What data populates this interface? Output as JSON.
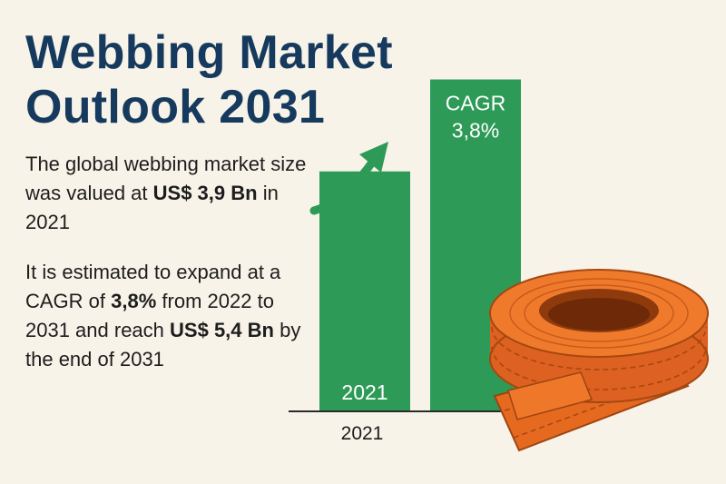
{
  "title_lines": [
    "Webbing Market",
    "Outlook 2031"
  ],
  "paragraph1": {
    "t1": "The global webbing market size was valued at ",
    "b1": "US$ 3,9 Bn",
    "t2": " in 2021"
  },
  "paragraph2": {
    "t1": "It is estimated to expand at a CAGR of ",
    "b1": "3,8%",
    "t2": " from 2022 to 2031 and reach ",
    "b2": "US$ 5,4 Bn",
    "t3": " by the end of 2031"
  },
  "chart_data": {
    "type": "bar",
    "categories": [
      "2021",
      ""
    ],
    "values": [
      3.9,
      5.4
    ],
    "bar_labels": [
      "2021",
      "CAGR\n3,8%"
    ],
    "axis_label_under_bar": "2021",
    "units": "US$ Bn",
    "ylim": [
      0,
      6.0
    ],
    "bar_color": "#2e9a57",
    "arrow_color": "#2e9a57",
    "grid": false,
    "legend": "none"
  },
  "colors": {
    "title": "#163a5e",
    "text": "#1d1d1d",
    "background": "#f8f3e8",
    "webbing_orange": "#e86a22"
  },
  "illustration": "orange-webbing-roll-icon"
}
